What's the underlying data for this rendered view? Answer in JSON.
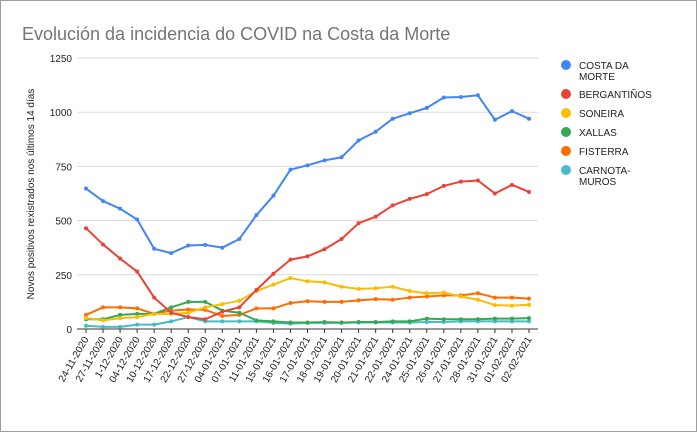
{
  "chart_data": {
    "type": "line",
    "title": "Evolución da incidencia do COVID na Costa da Morte",
    "xlabel": "",
    "ylabel": "Novos positivos rexistrados nos últimos 14 días",
    "ylim": [
      0,
      1250
    ],
    "yticks": [
      "0",
      "250",
      "500",
      "750",
      "1000",
      "1250"
    ],
    "grid": true,
    "legend_position": "right",
    "categories": [
      "24-11-2020",
      "27-11-2020",
      "1-12-2020",
      "04-12-2020",
      "10-12-2020",
      "17-12-2020",
      "22-12-2020",
      "27-12-2020",
      "04-01-2021",
      "07-01-2021",
      "11-01-2021",
      "15-01-2021",
      "16-01-2021",
      "17-01-2021",
      "18-01-2021",
      "19-01-2021",
      "20-01-2021",
      "21-01-2021",
      "22-01-2021",
      "24-01-2021",
      "25-01-2021",
      "26-01-2021",
      "27-01-2021",
      "28-01-2021",
      "31-01-2021",
      "01-02-2021",
      "02-02-2021"
    ],
    "series": [
      {
        "name": "COSTA DA MORTE",
        "color": "#4285f4",
        "values": [
          648,
          590,
          555,
          505,
          370,
          350,
          385,
          388,
          375,
          415,
          525,
          615,
          735,
          755,
          778,
          792,
          870,
          910,
          970,
          995,
          1020,
          1068,
          1070,
          1078,
          965,
          1005,
          970
        ]
      },
      {
        "name": "BERGANTIÑOS",
        "color": "#ea4335",
        "values": [
          465,
          390,
          325,
          265,
          145,
          75,
          55,
          45,
          80,
          100,
          180,
          255,
          320,
          335,
          368,
          415,
          488,
          518,
          570,
          600,
          622,
          660,
          680,
          685,
          625,
          665,
          632
        ]
      },
      {
        "name": "SONEIRA",
        "color": "#fbbc04",
        "values": [
          50,
          40,
          50,
          55,
          70,
          70,
          75,
          100,
          115,
          130,
          175,
          205,
          235,
          220,
          215,
          195,
          185,
          188,
          195,
          175,
          165,
          168,
          150,
          135,
          110,
          108,
          112
        ]
      },
      {
        "name": "XALLAS",
        "color": "#34a853",
        "values": [
          45,
          45,
          65,
          70,
          70,
          100,
          125,
          125,
          85,
          75,
          40,
          35,
          30,
          30,
          32,
          30,
          32,
          32,
          35,
          35,
          48,
          45,
          45,
          45,
          48,
          48,
          50
        ]
      },
      {
        "name": "FISTERRA",
        "color": "#ff6d01",
        "values": [
          65,
          100,
          100,
          95,
          70,
          85,
          90,
          88,
          60,
          65,
          95,
          95,
          120,
          128,
          125,
          125,
          132,
          138,
          135,
          145,
          150,
          155,
          155,
          165,
          145,
          145,
          140
        ]
      },
      {
        "name": "CARNOTA-MUROS",
        "color": "#46bdc6",
        "values": [
          15,
          10,
          10,
          20,
          20,
          35,
          55,
          35,
          35,
          35,
          35,
          28,
          25,
          28,
          28,
          28,
          30,
          30,
          30,
          30,
          32,
          32,
          35,
          35,
          35,
          35,
          35
        ]
      }
    ]
  }
}
